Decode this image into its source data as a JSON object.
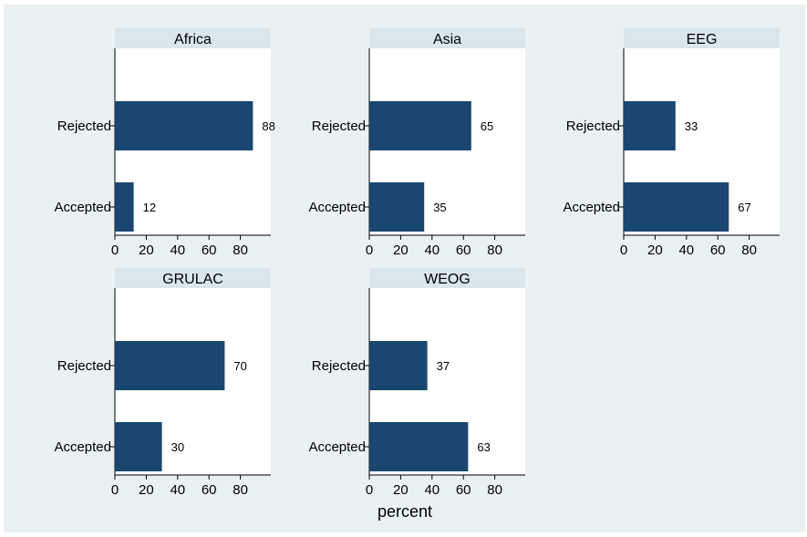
{
  "colors": {
    "outer_background": "#eaf1f3",
    "plot_background": "#ffffff",
    "strip_background": "#d9e6eb",
    "bar": "#1a476f"
  },
  "chart_data": {
    "type": "bar",
    "orientation": "horizontal",
    "categories": [
      "Rejected",
      "Accepted"
    ],
    "xlabel": "percent",
    "xlim": [
      0,
      100
    ],
    "xticks": [
      0,
      20,
      40,
      60,
      80
    ],
    "grid": false,
    "panels": [
      {
        "title": "Africa",
        "values": [
          88,
          12
        ]
      },
      {
        "title": "Asia",
        "values": [
          65,
          35
        ]
      },
      {
        "title": "EEG",
        "values": [
          33,
          67
        ]
      },
      {
        "title": "GRULAC",
        "values": [
          70,
          30
        ]
      },
      {
        "title": "WEOG",
        "values": [
          37,
          63
        ]
      }
    ]
  }
}
